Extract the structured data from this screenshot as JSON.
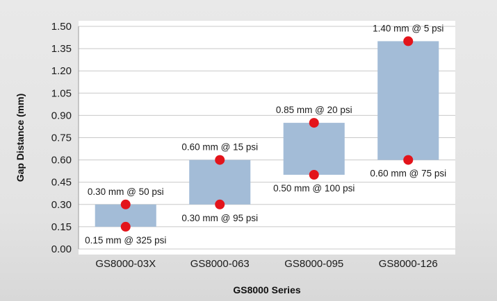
{
  "chart_data": {
    "type": "bar",
    "ylabel": "Gap Distance (mm)",
    "xlabel": "GS8000 Series",
    "ylim": [
      0,
      1.5
    ],
    "yticks": [
      "0.00",
      "0.15",
      "0.30",
      "0.45",
      "0.60",
      "0.75",
      "0.90",
      "1.05",
      "1.20",
      "1.35",
      "1.50"
    ],
    "grid": "horizontal",
    "categories": [
      "GS8000-03X",
      "GS8000-063",
      "GS8000-095",
      "GS8000-126"
    ],
    "ranges": [
      {
        "low": 0.15,
        "high": 0.3
      },
      {
        "low": 0.3,
        "high": 0.6
      },
      {
        "low": 0.5,
        "high": 0.85
      },
      {
        "low": 0.6,
        "high": 1.4
      }
    ],
    "points": [
      {
        "category": "GS8000-03X",
        "value": 0.3,
        "label": "0.30 mm @ 50 psi",
        "label_side": "above"
      },
      {
        "category": "GS8000-03X",
        "value": 0.15,
        "label": "0.15 mm @ 325 psi",
        "label_side": "below"
      },
      {
        "category": "GS8000-063",
        "value": 0.6,
        "label": "0.60 mm @ 15 psi",
        "label_side": "above"
      },
      {
        "category": "GS8000-063",
        "value": 0.3,
        "label": "0.30 mm @ 95 psi",
        "label_side": "below"
      },
      {
        "category": "GS8000-095",
        "value": 0.85,
        "label": "0.85 mm @ 20 psi",
        "label_side": "above"
      },
      {
        "category": "GS8000-095",
        "value": 0.5,
        "label": "0.50 mm @ 100 psi",
        "label_side": "below"
      },
      {
        "category": "GS8000-126",
        "value": 1.4,
        "label": "1.40 mm @ 5 psi",
        "label_side": "above"
      },
      {
        "category": "GS8000-126",
        "value": 0.6,
        "label": "0.60 mm @ 75 psi",
        "label_side": "below"
      }
    ],
    "colors": {
      "bar": "#a3bcd7",
      "point": "#e3141b",
      "grid": "#c8c8c8",
      "plot_bg": "#ffffff"
    }
  }
}
